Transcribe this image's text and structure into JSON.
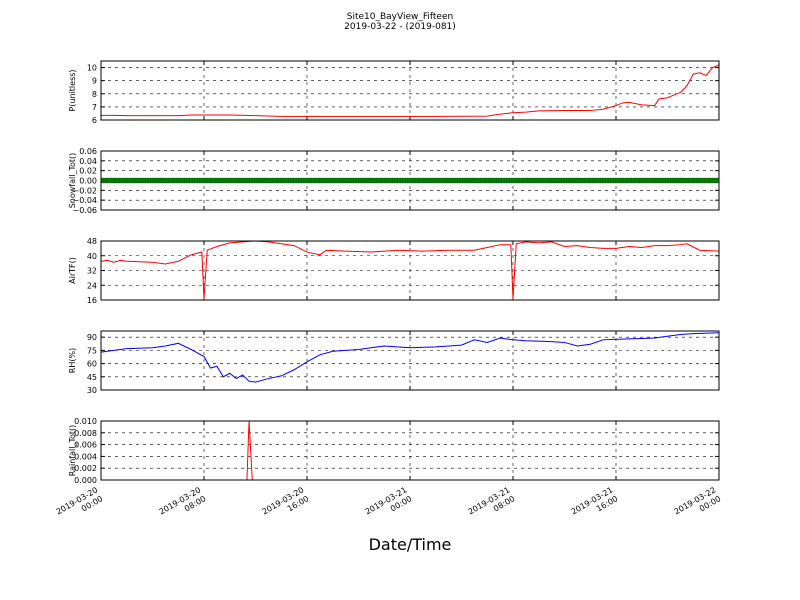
{
  "chart_data": {
    "title_line1": "Site10_BayView_Fifteen",
    "title_line2": "2019-03-22 - (2019-081)",
    "xlabel": "Date/Time",
    "x_ticks": [
      {
        "line1": "2019-03-20",
        "line2": "00:00"
      },
      {
        "line1": "2019-03-20",
        "line2": "08:00"
      },
      {
        "line1": "2019-03-20",
        "line2": "16:00"
      },
      {
        "line1": "2019-03-21",
        "line2": "00:00"
      },
      {
        "line1": "2019-03-21",
        "line2": "08:00"
      },
      {
        "line1": "2019-03-21",
        "line2": "16:00"
      },
      {
        "line1": "2019-03-22",
        "line2": "00:00"
      }
    ],
    "x_range": [
      "2019-03-20 00:00",
      "2019-03-22 00:00"
    ],
    "grid": true,
    "panels": [
      {
        "type": "line",
        "ylabel": "P(unitless)",
        "ylim": [
          6,
          10.5
        ],
        "yticks": [
          "6",
          "7",
          "8",
          "9",
          "10"
        ],
        "color": "#ff0000",
        "points": [
          [
            "2019-03-20 00:00",
            6.35
          ],
          [
            "2019-03-20 01:00",
            6.35
          ],
          [
            "2019-03-20 02:00",
            6.33
          ],
          [
            "2019-03-20 04:00",
            6.33
          ],
          [
            "2019-03-20 06:00",
            6.33
          ],
          [
            "2019-03-20 07:00",
            6.38
          ],
          [
            "2019-03-20 10:00",
            6.38
          ],
          [
            "2019-03-20 12:00",
            6.33
          ],
          [
            "2019-03-20 14:00",
            6.28
          ],
          [
            "2019-03-20 18:00",
            6.28
          ],
          [
            "2019-03-20 22:00",
            6.28
          ],
          [
            "2019-03-21 02:00",
            6.28
          ],
          [
            "2019-03-21 06:00",
            6.3
          ],
          [
            "2019-03-21 07:00",
            6.45
          ],
          [
            "2019-03-21 08:00",
            6.55
          ],
          [
            "2019-03-21 09:00",
            6.6
          ],
          [
            "2019-03-21 10:00",
            6.7
          ],
          [
            "2019-03-21 12:00",
            6.72
          ],
          [
            "2019-03-21 14:00",
            6.72
          ],
          [
            "2019-03-21 15:00",
            6.82
          ],
          [
            "2019-03-21 16:00",
            7.1
          ],
          [
            "2019-03-21 16:30",
            7.3
          ],
          [
            "2019-03-21 17:00",
            7.35
          ],
          [
            "2019-03-21 18:00",
            7.15
          ],
          [
            "2019-03-21 19:00",
            7.1
          ],
          [
            "2019-03-21 19:20",
            7.6
          ],
          [
            "2019-03-21 20:00",
            7.7
          ],
          [
            "2019-03-21 20:30",
            7.9
          ],
          [
            "2019-03-21 21:00",
            8.1
          ],
          [
            "2019-03-21 21:30",
            8.6
          ],
          [
            "2019-03-21 22:00",
            9.5
          ],
          [
            "2019-03-21 22:30",
            9.6
          ],
          [
            "2019-03-21 23:00",
            9.4
          ],
          [
            "2019-03-21 23:30",
            10.0
          ],
          [
            "2019-03-22 00:00",
            10.2
          ]
        ]
      },
      {
        "type": "line",
        "ylabel": "Snowfall_Tot()",
        "ylim": [
          -0.06,
          0.06
        ],
        "yticks": [
          "−0.06",
          "−0.04",
          "−0.02",
          "0.00",
          "0.02",
          "0.04",
          "0.06"
        ],
        "color": "#008000",
        "markers": true,
        "points": [
          [
            "2019-03-20 00:00",
            0
          ],
          [
            "2019-03-22 00:00",
            0
          ]
        ]
      },
      {
        "type": "line",
        "ylabel": "AirTF()",
        "ylim": [
          16,
          48
        ],
        "yticks": [
          "16",
          "24",
          "32",
          "40",
          "48"
        ],
        "color": "#ff0000",
        "points": [
          [
            "2019-03-20 00:00",
            37
          ],
          [
            "2019-03-20 00:30",
            37.5
          ],
          [
            "2019-03-20 01:00",
            36.5
          ],
          [
            "2019-03-20 01:30",
            37.5
          ],
          [
            "2019-03-20 02:00",
            37
          ],
          [
            "2019-03-20 04:00",
            36.5
          ],
          [
            "2019-03-20 05:00",
            35.5
          ],
          [
            "2019-03-20 06:00",
            37
          ],
          [
            "2019-03-20 07:00",
            40.5
          ],
          [
            "2019-03-20 07:50",
            42
          ],
          [
            "2019-03-20 08:00",
            16.5
          ],
          [
            "2019-03-20 08:15",
            43
          ],
          [
            "2019-03-20 09:00",
            45
          ],
          [
            "2019-03-20 10:00",
            47
          ],
          [
            "2019-03-20 11:00",
            47.5
          ],
          [
            "2019-03-20 12:00",
            48
          ],
          [
            "2019-03-20 13:00",
            47.5
          ],
          [
            "2019-03-20 14:00",
            46.5
          ],
          [
            "2019-03-20 15:00",
            45.5
          ],
          [
            "2019-03-20 16:00",
            42
          ],
          [
            "2019-03-20 17:00",
            40.5
          ],
          [
            "2019-03-20 17:30",
            43
          ],
          [
            "2019-03-20 19:00",
            42.5
          ],
          [
            "2019-03-20 21:00",
            42
          ],
          [
            "2019-03-20 23:00",
            43
          ],
          [
            "2019-03-21 01:00",
            42.5
          ],
          [
            "2019-03-21 03:00",
            43
          ],
          [
            "2019-03-21 05:00",
            43
          ],
          [
            "2019-03-21 06:00",
            44.5
          ],
          [
            "2019-03-21 07:00",
            46
          ],
          [
            "2019-03-21 07:50",
            46
          ],
          [
            "2019-03-21 08:00",
            16.5
          ],
          [
            "2019-03-21 08:15",
            46.5
          ],
          [
            "2019-03-21 09:00",
            47.5
          ],
          [
            "2019-03-21 10:00",
            47
          ],
          [
            "2019-03-21 11:00",
            47.5
          ],
          [
            "2019-03-21 12:00",
            45
          ],
          [
            "2019-03-21 13:00",
            45.5
          ],
          [
            "2019-03-21 14:00",
            44.5
          ],
          [
            "2019-03-21 15:00",
            44
          ],
          [
            "2019-03-21 16:00",
            44
          ],
          [
            "2019-03-21 17:00",
            45
          ],
          [
            "2019-03-21 18:00",
            44.5
          ],
          [
            "2019-03-21 19:00",
            45.5
          ],
          [
            "2019-03-21 20:00",
            45.5
          ],
          [
            "2019-03-21 21:00",
            46
          ],
          [
            "2019-03-21 21:30",
            46.5
          ],
          [
            "2019-03-21 22:30",
            43
          ],
          [
            "2019-03-22 00:00",
            42.5
          ]
        ]
      },
      {
        "type": "line",
        "ylabel": "RH(%)",
        "ylim": [
          30,
          97
        ],
        "yticks": [
          "30",
          "45",
          "60",
          "75",
          "90"
        ],
        "color": "#0000ff",
        "points": [
          [
            "2019-03-20 00:00",
            73
          ],
          [
            "2019-03-20 01:00",
            75
          ],
          [
            "2019-03-20 02:00",
            77
          ],
          [
            "2019-03-20 04:00",
            78
          ],
          [
            "2019-03-20 05:00",
            80
          ],
          [
            "2019-03-20 06:00",
            83
          ],
          [
            "2019-03-20 07:00",
            76
          ],
          [
            "2019-03-20 08:00",
            68
          ],
          [
            "2019-03-20 08:30",
            55
          ],
          [
            "2019-03-20 09:00",
            57
          ],
          [
            "2019-03-20 09:30",
            45
          ],
          [
            "2019-03-20 10:00",
            49
          ],
          [
            "2019-03-20 10:30",
            43
          ],
          [
            "2019-03-20 11:00",
            47
          ],
          [
            "2019-03-20 11:30",
            40
          ],
          [
            "2019-03-20 12:00",
            39
          ],
          [
            "2019-03-20 13:00",
            43
          ],
          [
            "2019-03-20 14:00",
            46
          ],
          [
            "2019-03-20 15:00",
            53
          ],
          [
            "2019-03-20 16:00",
            62
          ],
          [
            "2019-03-20 17:00",
            70
          ],
          [
            "2019-03-20 18:00",
            74
          ],
          [
            "2019-03-20 20:00",
            76
          ],
          [
            "2019-03-20 22:00",
            80
          ],
          [
            "2019-03-21 00:00",
            78
          ],
          [
            "2019-03-21 02:00",
            79
          ],
          [
            "2019-03-21 04:00",
            81
          ],
          [
            "2019-03-21 05:00",
            87
          ],
          [
            "2019-03-21 06:00",
            84
          ],
          [
            "2019-03-21 07:00",
            89
          ],
          [
            "2019-03-21 08:00",
            87
          ],
          [
            "2019-03-21 09:00",
            86
          ],
          [
            "2019-03-21 11:00",
            85
          ],
          [
            "2019-03-21 12:00",
            84
          ],
          [
            "2019-03-21 13:00",
            80
          ],
          [
            "2019-03-21 14:00",
            82
          ],
          [
            "2019-03-21 15:00",
            87
          ],
          [
            "2019-03-21 17:00",
            88
          ],
          [
            "2019-03-21 19:00",
            89
          ],
          [
            "2019-03-21 20:00",
            91
          ],
          [
            "2019-03-21 21:00",
            93
          ],
          [
            "2019-03-21 22:00",
            94
          ],
          [
            "2019-03-22 00:00",
            95
          ]
        ]
      },
      {
        "type": "line",
        "ylabel": "Rainfall_Tot()",
        "ylim": [
          0,
          0.01
        ],
        "yticks": [
          "0.000",
          "0.002",
          "0.004",
          "0.006",
          "0.008",
          "0.010"
        ],
        "color": "#ff0000",
        "points": [
          [
            "2019-03-20 00:00",
            0
          ],
          [
            "2019-03-20 11:20",
            0
          ],
          [
            "2019-03-20 11:30",
            0.01
          ],
          [
            "2019-03-20 11:45",
            0
          ],
          [
            "2019-03-22 00:00",
            0
          ]
        ]
      }
    ]
  }
}
